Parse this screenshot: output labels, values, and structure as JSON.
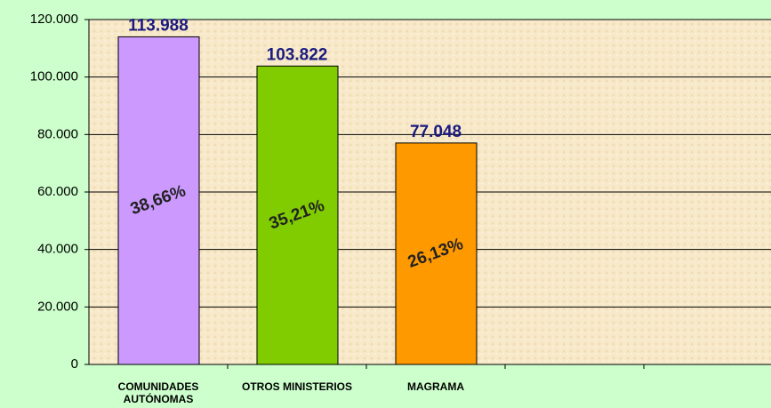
{
  "chart_data": {
    "type": "bar",
    "categories": [
      "COMUNIDADES AUTÓNOMAS",
      "OTROS MINISTERIOS",
      "MAGRAMA",
      null,
      null
    ],
    "values": [
      113988,
      103822,
      77048,
      null,
      null
    ],
    "value_labels": [
      "113.988",
      "103.822",
      "77.048",
      null,
      null
    ],
    "annotations": [
      "38,66%",
      "35,21%",
      "26,13%",
      null,
      null
    ],
    "colors": [
      "#cc99ff",
      "#80cc00",
      "#ff9900",
      null,
      null
    ],
    "ylim": [
      0,
      120000
    ],
    "yticks": [
      0,
      {
        "value": 20000,
        "label": "20.000"
      },
      {
        "value": 40000,
        "label": "40.000"
      },
      {
        "value": 60000,
        "label": "60.000"
      },
      {
        "value": 80000,
        "label": "80.000"
      },
      {
        "value": 100000,
        "label": "100.000"
      },
      {
        "value": 120000,
        "label": "120.000"
      }
    ],
    "grid": true
  }
}
